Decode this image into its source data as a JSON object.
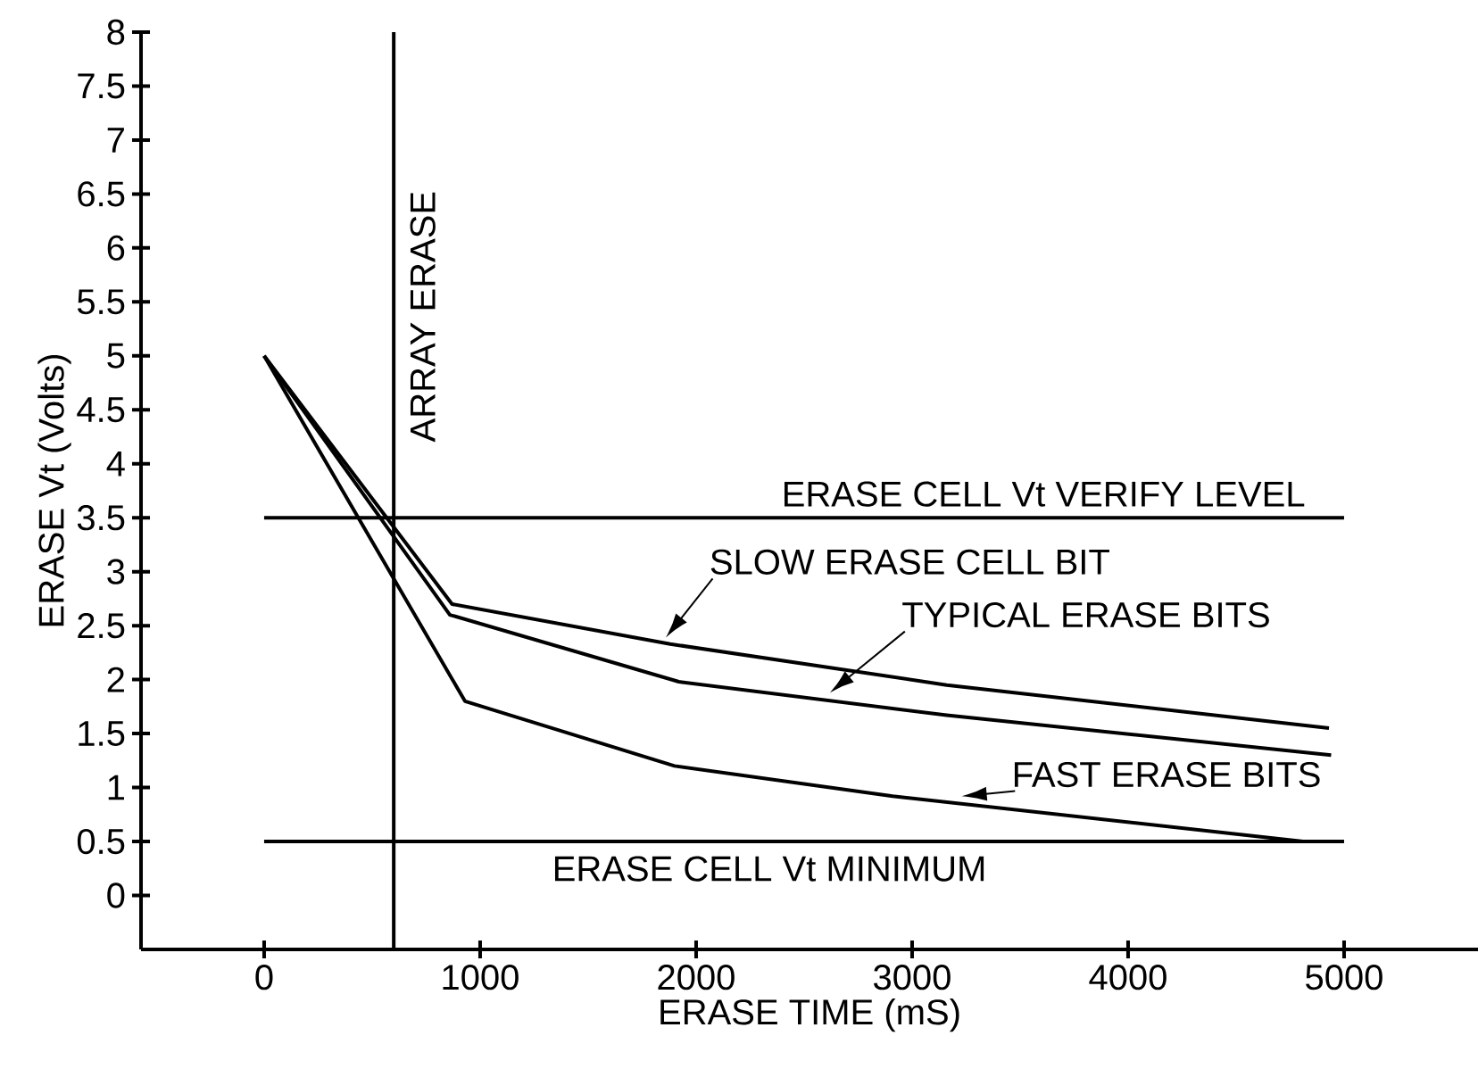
{
  "chart_data": {
    "type": "line",
    "xlabel": "ERASE TIME (mS)",
    "ylabel": "ERASE Vt (Volts)",
    "xlim": [
      -570,
      5620
    ],
    "ylim": [
      -0.5,
      8
    ],
    "xticks": [
      0,
      1000,
      2000,
      3000,
      4000,
      5000
    ],
    "yticks": [
      0,
      0.5,
      1,
      1.5,
      2,
      2.5,
      3,
      3.5,
      4,
      4.5,
      5,
      5.5,
      6,
      6.5,
      7,
      7.5,
      8
    ],
    "series": [
      {
        "color": "#000000",
        "x": [
          0,
          870,
          1880,
          3160,
          4930
        ],
        "values": [
          5,
          2.7,
          2.33,
          1.95,
          1.55
        ]
      },
      {
        "color": "#000000",
        "x": [
          0,
          860,
          1920,
          3160,
          4940
        ],
        "values": [
          5,
          2.6,
          1.98,
          1.67,
          1.3
        ]
      },
      {
        "color": "#000000",
        "x": [
          0,
          930,
          1900,
          2910,
          4810
        ],
        "values": [
          5,
          1.8,
          1.2,
          0.92,
          0.5
        ]
      }
    ],
    "ref_lines": [
      {
        "axis": "x",
        "value": 600,
        "label": "ARRAY ERASE"
      },
      {
        "axis": "y",
        "value": 3.5,
        "label": "ERASE CELL Vt VERIFY LEVEL"
      },
      {
        "axis": "y",
        "value": 0.5,
        "label": "ERASE CELL Vt MINIMUM"
      }
    ],
    "annotations": [
      {
        "text": "SLOW ERASE CELL BIT",
        "x": 1860,
        "y": 2.39
      },
      {
        "text": "TYPICAL ERASE BITS",
        "x": 2620,
        "y": 1.88
      },
      {
        "text": "FAST ERASE BITS",
        "x": 3230,
        "y": 0.92
      }
    ],
    "marker": "none",
    "line_style": "solid",
    "grid": false
  }
}
